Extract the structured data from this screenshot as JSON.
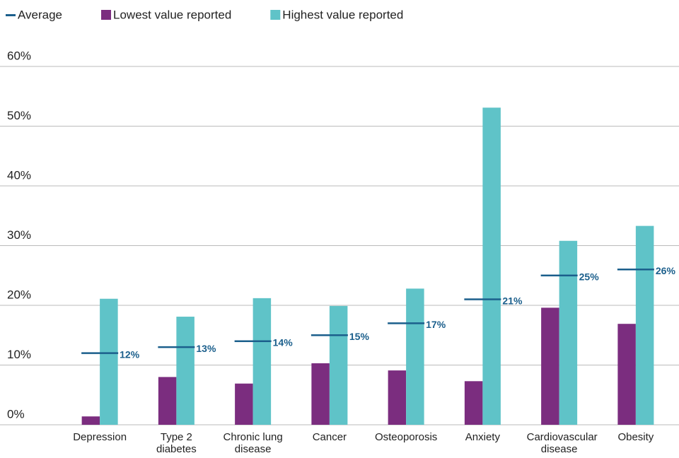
{
  "chart_data": {
    "type": "bar",
    "categories": [
      "Depression",
      "Type 2 diabetes",
      "Chronic lung disease",
      "Cancer",
      "Osteoporosis",
      "Anxiety",
      "Cardiovascular disease",
      "Obesity"
    ],
    "series": [
      {
        "name": "Average",
        "type": "line",
        "color": "#1b5f8c",
        "values": [
          12,
          13,
          14,
          15,
          17,
          21,
          25,
          26
        ],
        "value_labels": [
          "12%",
          "13%",
          "14%",
          "15%",
          "17%",
          "21%",
          "25%",
          "26%"
        ]
      },
      {
        "name": "Lowest value reported",
        "color": "#7b2d7f",
        "values": [
          1.4,
          8.0,
          6.9,
          10.3,
          9.1,
          7.3,
          19.6,
          16.9
        ]
      },
      {
        "name": "Highest value reported",
        "color": "#5fc3c8",
        "values": [
          21.1,
          18.1,
          21.2,
          19.9,
          22.8,
          53.1,
          30.8,
          33.3
        ]
      }
    ],
    "ylim": [
      0,
      60
    ],
    "yticks": [
      {
        "value": 0,
        "label": "0%"
      },
      {
        "value": 10,
        "label": "10%"
      },
      {
        "value": 20,
        "label": "20%"
      },
      {
        "value": 30,
        "label": "30%"
      },
      {
        "value": 40,
        "label": "40%"
      },
      {
        "value": 50,
        "label": "50%"
      },
      {
        "value": 60,
        "label": "60%"
      }
    ],
    "grid": true,
    "legend": "top"
  }
}
